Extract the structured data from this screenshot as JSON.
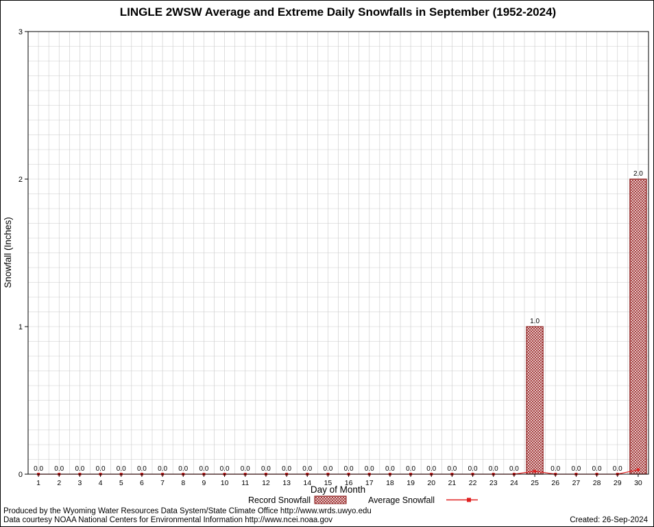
{
  "chart_data": {
    "type": "bar",
    "title": "LINGLE 2WSW Average and Extreme Daily Snowfalls in September (1952-2024)",
    "xlabel": "Day of Month",
    "ylabel": "Snowfall (Inches)",
    "ylim": [
      0,
      3
    ],
    "yticks": [
      0,
      1,
      2,
      3
    ],
    "categories": [
      1,
      2,
      3,
      4,
      5,
      6,
      7,
      8,
      9,
      10,
      11,
      12,
      13,
      14,
      15,
      16,
      17,
      18,
      19,
      20,
      21,
      22,
      23,
      24,
      25,
      26,
      27,
      28,
      29,
      30
    ],
    "series": [
      {
        "name": "Record Snowfall",
        "type": "bar",
        "values": [
          0,
          0,
          0,
          0,
          0,
          0,
          0,
          0,
          0,
          0,
          0,
          0,
          0,
          0,
          0,
          0,
          0,
          0,
          0,
          0,
          0,
          0,
          0,
          0,
          1.0,
          0,
          0,
          0,
          0,
          2.0
        ]
      },
      {
        "name": "Average Snowfall",
        "type": "line",
        "values": [
          0,
          0,
          0,
          0,
          0,
          0,
          0,
          0,
          0,
          0,
          0,
          0,
          0,
          0,
          0,
          0,
          0,
          0,
          0,
          0,
          0,
          0,
          0,
          0,
          0.02,
          0,
          0,
          0,
          0,
          0.03
        ]
      }
    ],
    "bar_labels": [
      "0.0",
      "0.0",
      "0.0",
      "0.0",
      "0.0",
      "0.0",
      "0.0",
      "0.0",
      "0.0",
      "0.0",
      "0.0",
      "0.0",
      "0.0",
      "0.0",
      "0.0",
      "0.0",
      "0.0",
      "0.0",
      "0.0",
      "0.0",
      "0.0",
      "0.0",
      "0.0",
      "0.0",
      "1.0",
      "0.0",
      "0.0",
      "0.0",
      "0.0",
      "2.0"
    ],
    "grid": true,
    "legend_position": "bottom",
    "colors": {
      "bar_edge": "#8b1a1a",
      "bar_hatch": "#a03030",
      "average_line": "#e02020",
      "grid": "#c9c9c9",
      "axis": "#000000"
    }
  },
  "footer": {
    "line1": "Produced by the Wyoming Water Resources Data System/State Climate Office http://www.wrds.uwyo.edu",
    "line2": "Data courtesy NOAA National Centers for Environmental Information http://www.ncei.noaa.gov",
    "created": "Created: 26-Sep-2024"
  }
}
